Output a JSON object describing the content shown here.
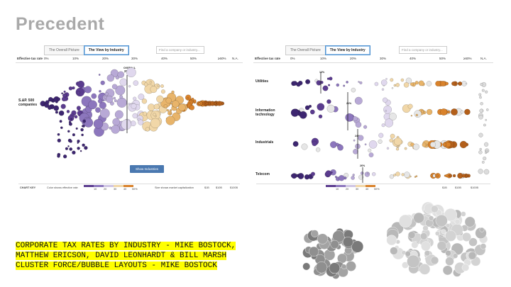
{
  "slide": {
    "title": "Precedent",
    "caption_lines": [
      "CORPORATE TAX RATES BY INDUSTRY - MIKE BOSTOCK,",
      "MATTHEW ERICSON, DAVID LEONHARDT & BILL MARSH",
      "CLUSTER FORCE/BUBBLE LAYOUTS - MIKE BOSTOCK"
    ]
  },
  "left_screenshot": {
    "tabs": [
      "The Overall Picture",
      "The View by Industry"
    ],
    "active_tab": 1,
    "search_placeholder": "Find a company or industry...",
    "scale_label": "Effective tax rate",
    "scale_ticks": [
      "0%",
      "10%",
      "20%",
      "30%",
      "40%",
      "50%",
      "≥60%",
      "N.A."
    ],
    "overall_label": "OVERALL",
    "overall_value": "29.1%",
    "group_label": "S.&P. 500 companies",
    "button_label": "Show Industries",
    "footer_label": "CHART KEY",
    "color_legend_label": "Color shows effective rate",
    "color_legend_ticks": [
      "10",
      "20",
      "30",
      "40",
      "50%"
    ],
    "size_legend_label": "Size shows market capitalization",
    "size_legend_ticks": [
      "$1B",
      "$10B",
      "$100B"
    ]
  },
  "right_screenshot": {
    "tabs": [
      "The Overall Picture",
      "The View by Industry"
    ],
    "active_tab": 1,
    "search_placeholder": "Find a company or industry...",
    "scale_label": "Effective tax rate",
    "scale_ticks": [
      "0%",
      "10%",
      "20%",
      "30%",
      "40%",
      "50%",
      "≥60%",
      "N.A."
    ],
    "sections": [
      {
        "name": "Utilities",
        "value": "13%"
      },
      {
        "name": "Information technology",
        "value": "21%"
      },
      {
        "name": "Industrials",
        "value": "24%"
      },
      {
        "name": "Telecom",
        "value": "26%"
      }
    ],
    "color_legend_ticks": [
      "10",
      "20",
      "30",
      "40",
      "50%"
    ],
    "size_legend_ticks": [
      "$1B",
      "$10B",
      "$100B"
    ]
  },
  "colors": {
    "title_gray": "#a9a9a9",
    "caption_highlight": "#ffff00",
    "purple_dark": "#5b3c8f",
    "purple_light": "#b8a9d6",
    "orange": "#d9822b",
    "beige": "#f1d7a8",
    "bubble_dark": "#8f8f8f",
    "bubble_light": "#d3d3d3"
  }
}
